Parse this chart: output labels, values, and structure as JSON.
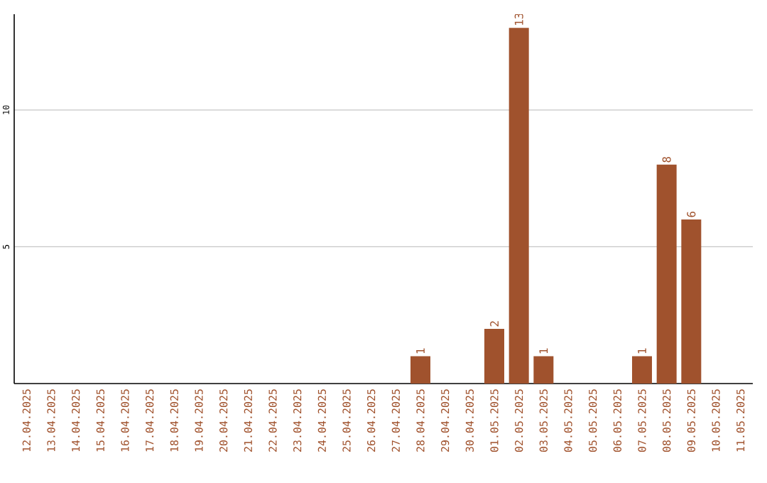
{
  "chart_data": {
    "type": "bar",
    "categories": [
      "12.04.2025",
      "13.04.2025",
      "14.04.2025",
      "15.04.2025",
      "16.04.2025",
      "17.04.2025",
      "18.04.2025",
      "19.04.2025",
      "20.04.2025",
      "21.04.2025",
      "22.04.2025",
      "23.04.2025",
      "24.04.2025",
      "25.04.2025",
      "26.04.2025",
      "27.04.2025",
      "28.04.2025",
      "29.04.2025",
      "30.04.2025",
      "01.05.2025",
      "02.05.2025",
      "03.05.2025",
      "04.05.2025",
      "05.05.2025",
      "06.05.2025",
      "07.05.2025",
      "08.05.2025",
      "09.05.2025",
      "10.05.2025",
      "11.05.2025"
    ],
    "values": [
      0,
      0,
      0,
      0,
      0,
      0,
      0,
      0,
      0,
      0,
      0,
      0,
      0,
      0,
      0,
      0,
      1,
      0,
      0,
      2,
      13,
      1,
      0,
      0,
      0,
      1,
      8,
      6,
      0,
      0
    ],
    "value_labels": [
      null,
      null,
      null,
      null,
      null,
      null,
      null,
      null,
      null,
      null,
      null,
      null,
      null,
      null,
      null,
      null,
      "1",
      null,
      null,
      "2",
      "13",
      "1",
      null,
      null,
      null,
      "1",
      "8",
      "6",
      null,
      null
    ],
    "color": "#a0522d",
    "ylim": [
      0,
      13.5
    ],
    "yticks": [
      5,
      10
    ],
    "grid": "y"
  }
}
